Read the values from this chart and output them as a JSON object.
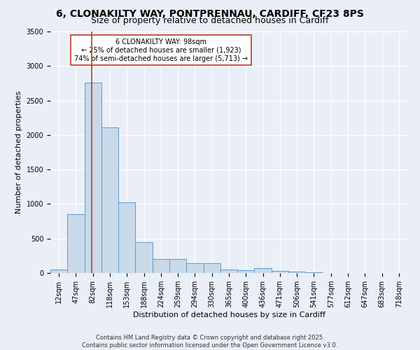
{
  "title_line1": "6, CLONAKILTY WAY, PONTPRENNAU, CARDIFF, CF23 8PS",
  "title_line2": "Size of property relative to detached houses in Cardiff",
  "xlabel": "Distribution of detached houses by size in Cardiff",
  "ylabel": "Number of detached properties",
  "bin_labels": [
    "12sqm",
    "47sqm",
    "82sqm",
    "118sqm",
    "153sqm",
    "188sqm",
    "224sqm",
    "259sqm",
    "294sqm",
    "330sqm",
    "365sqm",
    "400sqm",
    "436sqm",
    "471sqm",
    "506sqm",
    "541sqm",
    "577sqm",
    "612sqm",
    "647sqm",
    "683sqm",
    "718sqm"
  ],
  "bar_heights": [
    55,
    850,
    2760,
    2110,
    1020,
    450,
    200,
    200,
    140,
    140,
    55,
    45,
    75,
    35,
    20,
    10,
    5,
    5,
    5,
    5,
    5
  ],
  "bar_color": "#c9d9e8",
  "bar_edge_color": "#5b9bd5",
  "bg_color": "#eaeff7",
  "grid_color": "#ffffff",
  "annotation_text": "6 CLONAKILTY WAY: 98sqm\n← 25% of detached houses are smaller (1,923)\n74% of semi-detached houses are larger (5,713) →",
  "vline_color": "#c0392b",
  "ylim": [
    0,
    3500
  ],
  "yticks": [
    0,
    500,
    1000,
    1500,
    2000,
    2500,
    3000,
    3500
  ],
  "footnote1": "Contains HM Land Registry data © Crown copyright and database right 2025.",
  "footnote2": "Contains public sector information licensed under the Open Government Licence v3.0.",
  "annotation_box_color": "#ffffff",
  "annotation_box_edge": "#c0392b",
  "title_fontsize": 10,
  "subtitle_fontsize": 9,
  "tick_fontsize": 7,
  "ylabel_fontsize": 8,
  "xlabel_fontsize": 8,
  "footnote_fontsize": 6,
  "annotation_fontsize": 7
}
